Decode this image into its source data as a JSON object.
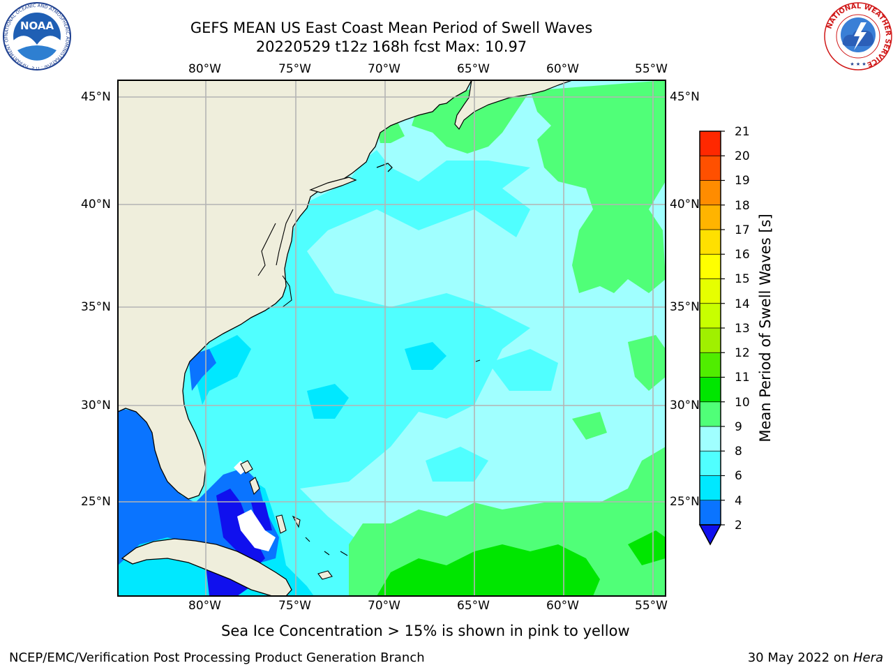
{
  "title": {
    "line1": "GEFS MEAN US East Coast Mean Period of Swell Waves",
    "line2": "20220529 t12z 168h fcst   Max: 10.97"
  },
  "map": {
    "lon_labels": [
      "80°W",
      "75°W",
      "70°W",
      "65°W",
      "60°W",
      "55°W"
    ],
    "lat_labels": [
      "45°N",
      "40°N",
      "35°N",
      "30°N",
      "25°N"
    ],
    "land_color": "#efeedc",
    "grid_color": "#b4b4b4"
  },
  "colorbar": {
    "label": "Mean Period of Swell Waves [s]",
    "levels": [
      "2",
      "4",
      "6",
      "8",
      "9",
      "10",
      "11",
      "12",
      "13",
      "14",
      "15",
      "16",
      "17",
      "18",
      "19",
      "20",
      "21"
    ],
    "colors": [
      "#0a74ff",
      "#00e8ff",
      "#50ffff",
      "#a0ffff",
      "#50ff78",
      "#00e600",
      "#50ed00",
      "#a0f000",
      "#c8ff00",
      "#e6ff00",
      "#ffff00",
      "#ffe000",
      "#ffb400",
      "#ff8c00",
      "#ff5000",
      "#ff2800",
      "#ff0000"
    ],
    "under_color": "#1010ee"
  },
  "note": "Sea Ice Concentration > 15% is shown in pink to yellow",
  "footer": {
    "left": "NCEP/EMC/Verification Post Processing Product Generation Branch",
    "right_date": "30 May 2022 on ",
    "right_machine": "Hera"
  },
  "logos": {
    "noaa_text": "NOAA",
    "noaa_ring": "NATIONAL OCEANIC AND ATMOSPHERIC ADMINISTRATION · U.S. DEPARTMENT OF COMMERCE",
    "nws_ring": "NATIONAL WEATHER SERVICE"
  }
}
